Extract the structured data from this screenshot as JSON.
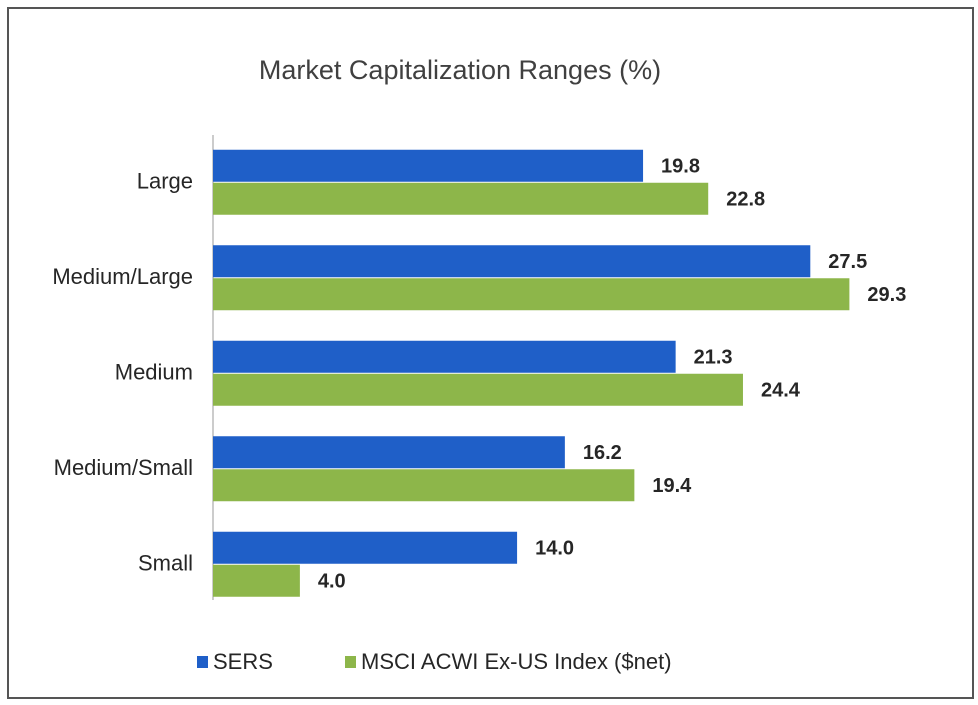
{
  "chart_data": {
    "type": "barh",
    "title": "Market Capitalization Ranges (%)",
    "categories": [
      "Large",
      "Medium/Large",
      "Medium",
      "Medium/Small",
      "Small"
    ],
    "series": [
      {
        "name": "SERS",
        "color": "#1f5fc8",
        "values": [
          19.8,
          27.5,
          21.3,
          16.2,
          14
        ],
        "value_labels": [
          "19.8",
          "27.5",
          "21.3",
          "16.2",
          "14.0"
        ]
      },
      {
        "name": "MSCI ACWI Ex-US Index ($net)",
        "color": "#8db64a",
        "values": [
          22.8,
          29.3,
          24.4,
          19.4,
          4
        ],
        "value_labels": [
          "22.8",
          "29.3",
          "24.4",
          "19.4",
          "4.0"
        ]
      }
    ],
    "legend": "bottom"
  }
}
